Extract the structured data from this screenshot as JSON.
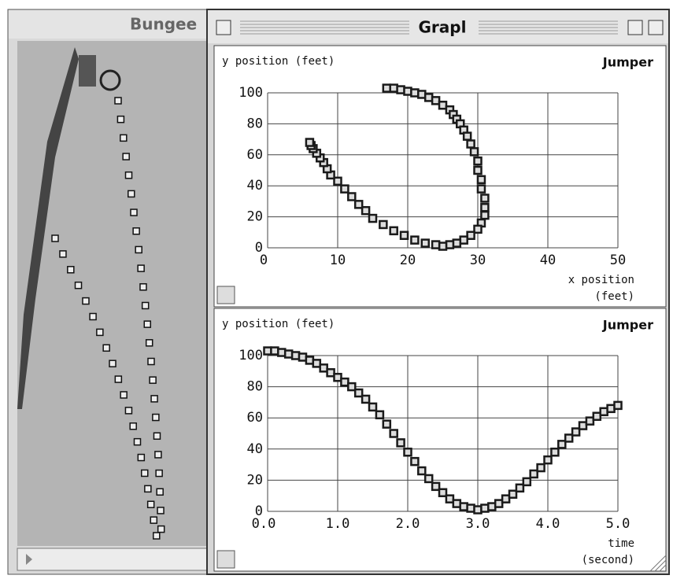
{
  "windows": {
    "left": {
      "title": "Bungee"
    },
    "graph": {
      "title": "Grapl"
    }
  },
  "chart_data": [
    {
      "type": "scatter",
      "y_label": "y position (feet)",
      "x_label": [
        "x position",
        "(feet)"
      ],
      "x": [
        17,
        18,
        19,
        20,
        21,
        22,
        23,
        24,
        25,
        26,
        26.5,
        27,
        27.5,
        28,
        28.5,
        29,
        29.5,
        30,
        30,
        30.5,
        30.5,
        31,
        31,
        31,
        30.5,
        30,
        29,
        28,
        27,
        26,
        25,
        24,
        22.5,
        21,
        19.5,
        18,
        16.5,
        15,
        14,
        13,
        12,
        11,
        10,
        9,
        8.5,
        8,
        7.5,
        7,
        6.5,
        6.2,
        6
      ],
      "series": [
        {
          "name": "Jumper",
          "color": "#1a1a1a",
          "values": [
            103,
            103,
            102,
            101,
            100,
            99,
            97,
            95,
            92,
            89,
            86,
            83,
            80,
            76,
            72,
            67,
            62,
            56,
            50,
            44,
            38,
            32,
            26,
            21,
            16,
            12,
            8,
            5,
            3,
            2,
            1,
            2,
            3,
            5,
            8,
            11,
            15,
            19,
            24,
            28,
            33,
            38,
            43,
            47,
            51,
            55,
            58,
            61,
            64,
            66,
            68
          ]
        }
      ],
      "xlim": [
        0,
        50
      ],
      "xticks": [
        0,
        10,
        20,
        30,
        40,
        50
      ],
      "ylim": [
        0,
        100
      ],
      "yticks": [
        0,
        20,
        40,
        60,
        80,
        100
      ],
      "grid": true
    },
    {
      "type": "scatter",
      "y_label": "y position (feet)",
      "x_label": [
        "time",
        "(second)"
      ],
      "x": [
        0,
        0.1,
        0.2,
        0.3,
        0.4,
        0.5,
        0.6,
        0.7,
        0.8,
        0.9,
        1.0,
        1.1,
        1.2,
        1.3,
        1.4,
        1.5,
        1.6,
        1.7,
        1.8,
        1.9,
        2.0,
        2.1,
        2.2,
        2.3,
        2.4,
        2.5,
        2.6,
        2.7,
        2.8,
        2.9,
        3.0,
        3.1,
        3.2,
        3.3,
        3.4,
        3.5,
        3.6,
        3.7,
        3.8,
        3.9,
        4.0,
        4.1,
        4.2,
        4.3,
        4.4,
        4.5,
        4.6,
        4.7,
        4.8,
        4.9,
        5.0
      ],
      "series": [
        {
          "name": "Jumper",
          "color": "#1a1a1a",
          "values": [
            103,
            103,
            102,
            101,
            100,
            99,
            97,
            95,
            92,
            89,
            86,
            83,
            80,
            76,
            72,
            67,
            62,
            56,
            50,
            44,
            38,
            32,
            26,
            21,
            16,
            12,
            8,
            5,
            3,
            2,
            1,
            2,
            3,
            5,
            8,
            11,
            15,
            19,
            24,
            28,
            33,
            38,
            43,
            47,
            51,
            55,
            58,
            61,
            64,
            66,
            68
          ]
        }
      ],
      "xlim": [
        0,
        5
      ],
      "xticks": [
        {
          "value": 0,
          "label": "0.0"
        },
        {
          "value": 1,
          "label": "1.0"
        },
        {
          "value": 2,
          "label": "2.0"
        },
        {
          "value": 3,
          "label": "3.0"
        },
        {
          "value": 4,
          "label": "4.0"
        },
        {
          "value": 5,
          "label": "5.0"
        }
      ],
      "ylim": [
        0,
        100
      ],
      "yticks": [
        0,
        20,
        40,
        60,
        80,
        100
      ],
      "grid": true
    }
  ]
}
